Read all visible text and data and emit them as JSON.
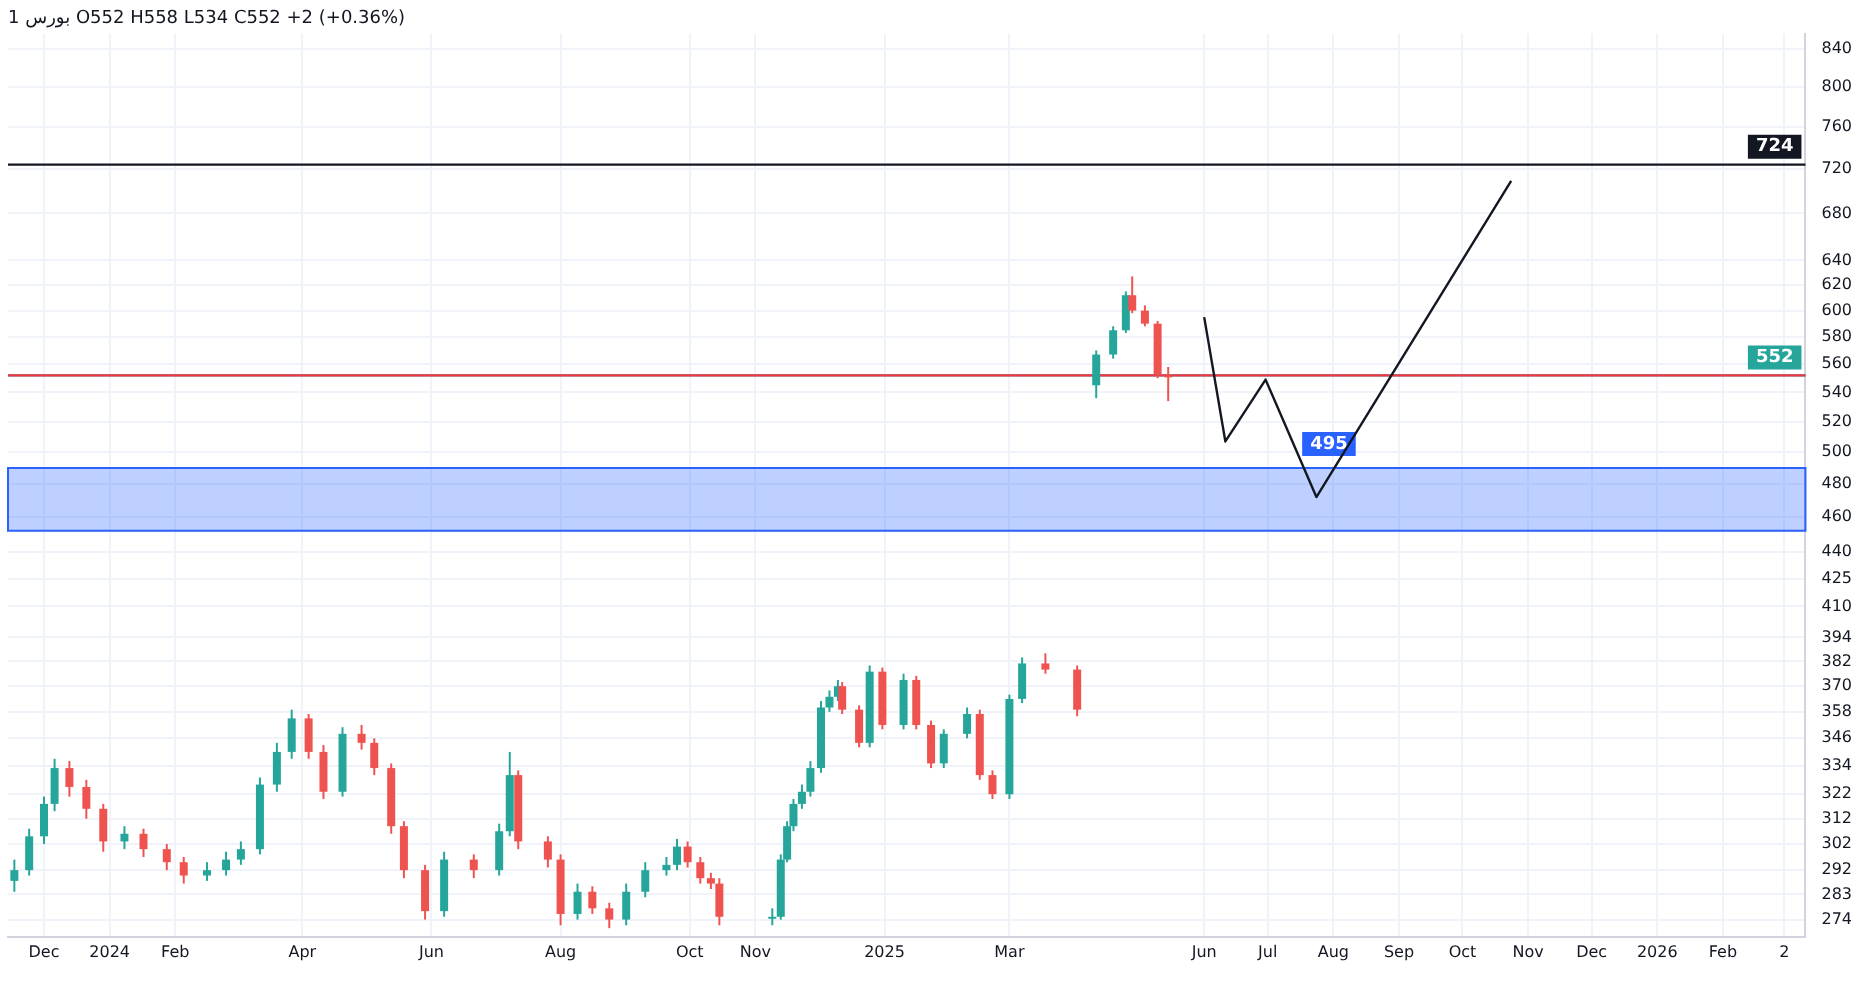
{
  "chart_data": {
    "type": "candlestick",
    "title": "1 بورس O552 H558 L534 C552 +2 (+0.36%)",
    "x": [
      "2023-11-17",
      "2023-11-24",
      "2023-12-01",
      "2023-12-06",
      "2023-12-13",
      "2023-12-21",
      "2023-12-29",
      "2024-01-08",
      "2024-01-17",
      "2024-01-28",
      "2024-02-05",
      "2024-02-16",
      "2024-02-25",
      "2024-03-03",
      "2024-03-12",
      "2024-03-20",
      "2024-03-27",
      "2024-04-04",
      "2024-04-11",
      "2024-04-20",
      "2024-04-29",
      "2024-05-05",
      "2024-05-13",
      "2024-05-19",
      "2024-05-29",
      "2024-06-07",
      "2024-06-21",
      "2024-07-03",
      "2024-07-08",
      "2024-07-12",
      "2024-07-26",
      "2024-08-01",
      "2024-08-09",
      "2024-08-16",
      "2024-08-24",
      "2024-09-01",
      "2024-09-10",
      "2024-09-20",
      "2024-09-25",
      "2024-09-30",
      "2024-10-06",
      "2024-10-11",
      "2024-10-15",
      "2024-11-09",
      "2024-11-13",
      "2024-11-16",
      "2024-11-19",
      "2024-11-23",
      "2024-11-27",
      "2024-12-02",
      "2024-12-06",
      "2024-12-10",
      "2024-12-12",
      "2024-12-20",
      "2024-12-25",
      "2024-12-31",
      "2025-01-10",
      "2025-01-16",
      "2025-01-23",
      "2025-01-29",
      "2025-02-09",
      "2025-02-15",
      "2025-02-21",
      "2025-03-01",
      "2025-03-07",
      "2025-03-18",
      "2025-04-02",
      "2025-04-11",
      "2025-04-19",
      "2025-04-25",
      "2025-04-28",
      "2025-05-04",
      "2025-05-10",
      "2025-05-15"
    ],
    "ohlc": [
      [
        288,
        296,
        284,
        292
      ],
      [
        292,
        308,
        290,
        305
      ],
      [
        305,
        321,
        302,
        318
      ],
      [
        318,
        337,
        315,
        333
      ],
      [
        333,
        336,
        321,
        325
      ],
      [
        325,
        328,
        312,
        316
      ],
      [
        316,
        318,
        299,
        303
      ],
      [
        303,
        309,
        300,
        306
      ],
      [
        306,
        308,
        297,
        300
      ],
      [
        300,
        302,
        292,
        295
      ],
      [
        295,
        297,
        287,
        290
      ],
      [
        290,
        295,
        288,
        292
      ],
      [
        292,
        299,
        290,
        296
      ],
      [
        296,
        303,
        294,
        300
      ],
      [
        300,
        329,
        298,
        326
      ],
      [
        326,
        344,
        323,
        340
      ],
      [
        340,
        359,
        337,
        355
      ],
      [
        355,
        357,
        337,
        340
      ],
      [
        340,
        343,
        320,
        323
      ],
      [
        323,
        351,
        321,
        348
      ],
      [
        348,
        352,
        341,
        344
      ],
      [
        344,
        346,
        330,
        333
      ],
      [
        333,
        335,
        306,
        309
      ],
      [
        309,
        311,
        289,
        292
      ],
      [
        292,
        294,
        274,
        277
      ],
      [
        277,
        299,
        275,
        296
      ],
      [
        296,
        298,
        289,
        292
      ],
      [
        292,
        310,
        290,
        307
      ],
      [
        307,
        340,
        305,
        330
      ],
      [
        330,
        332,
        300,
        303
      ],
      [
        303,
        305,
        293,
        296
      ],
      [
        296,
        298,
        272,
        276
      ],
      [
        276,
        287,
        274,
        284
      ],
      [
        284,
        286,
        276,
        278
      ],
      [
        278,
        280,
        271,
        274
      ],
      [
        274,
        287,
        272,
        284
      ],
      [
        284,
        295,
        282,
        292
      ],
      [
        292,
        297,
        290,
        294
      ],
      [
        294,
        304,
        292,
        301
      ],
      [
        301,
        303,
        293,
        295
      ],
      [
        295,
        297,
        287,
        289
      ],
      [
        289,
        291,
        285,
        287
      ],
      [
        287,
        289,
        272,
        275
      ],
      [
        275,
        278,
        272,
        275
      ],
      [
        275,
        298,
        274,
        296
      ],
      [
        296,
        311,
        295,
        309
      ],
      [
        309,
        320,
        307,
        318
      ],
      [
        318,
        326,
        316,
        323
      ],
      [
        323,
        336,
        321,
        333
      ],
      [
        333,
        363,
        331,
        360
      ],
      [
        360,
        368,
        358,
        365
      ],
      [
        365,
        373,
        363,
        370
      ],
      [
        370,
        372,
        357,
        359
      ],
      [
        359,
        361,
        342,
        344
      ],
      [
        344,
        380,
        342,
        377
      ],
      [
        377,
        379,
        350,
        352
      ],
      [
        352,
        376,
        350,
        373
      ],
      [
        373,
        375,
        350,
        352
      ],
      [
        352,
        354,
        333,
        335
      ],
      [
        335,
        350,
        333,
        348
      ],
      [
        348,
        360,
        346,
        357
      ],
      [
        357,
        359,
        328,
        330
      ],
      [
        330,
        332,
        320,
        322
      ],
      [
        322,
        366,
        320,
        364
      ],
      [
        364,
        384,
        362,
        381
      ],
      [
        381,
        386,
        376,
        378
      ],
      [
        378,
        380,
        356,
        359
      ],
      [
        545,
        570,
        536,
        567
      ],
      [
        567,
        588,
        564,
        585
      ],
      [
        585,
        615,
        583,
        612
      ],
      [
        612,
        627,
        598,
        600
      ],
      [
        600,
        604,
        588,
        590
      ],
      [
        590,
        592,
        550,
        553
      ],
      [
        552,
        558,
        534,
        552
      ]
    ],
    "colors": [
      "#26a69a",
      "#26a69a",
      "#26a69a",
      "#26a69a",
      "#ef5350",
      "#ef5350",
      "#ef5350",
      "#26a69a",
      "#ef5350",
      "#ef5350",
      "#ef5350",
      "#26a69a",
      "#26a69a",
      "#26a69a",
      "#26a69a",
      "#26a69a",
      "#26a69a",
      "#ef5350",
      "#ef5350",
      "#26a69a",
      "#ef5350",
      "#ef5350",
      "#ef5350",
      "#ef5350",
      "#ef5350",
      "#26a69a",
      "#ef5350",
      "#26a69a",
      "#26a69a",
      "#ef5350",
      "#ef5350",
      "#ef5350",
      "#26a69a",
      "#ef5350",
      "#ef5350",
      "#26a69a",
      "#26a69a",
      "#26a69a",
      "#26a69a",
      "#ef5350",
      "#ef5350",
      "#ef5350",
      "#ef5350",
      "#26a69a",
      "#26a69a",
      "#26a69a",
      "#26a69a",
      "#26a69a",
      "#26a69a",
      "#26a69a",
      "#26a69a",
      "#26a69a",
      "#ef5350",
      "#ef5350",
      "#26a69a",
      "#ef5350",
      "#26a69a",
      "#ef5350",
      "#ef5350",
      "#26a69a",
      "#26a69a",
      "#ef5350",
      "#ef5350",
      "#26a69a",
      "#26a69a",
      "#ef5350",
      "#ef5350",
      "#26a69a",
      "#26a69a",
      "#26a69a",
      "#ef5350",
      "#ef5350",
      "#ef5350",
      "#ef5350"
    ],
    "series": [
      {
        "type": "line",
        "color": "#131722",
        "x": [
          "2025-06-01",
          "2025-06-11",
          "2025-06-30",
          "2025-07-24",
          "2025-10-24"
        ],
        "values": [
          595,
          507,
          549,
          472,
          709
        ]
      }
    ],
    "ref_lines": [
      {
        "axis": "y",
        "value": 724,
        "label": "724",
        "color": "#131722"
      },
      {
        "axis": "y",
        "value": 552,
        "label": "552",
        "color": "#26a69a"
      },
      {
        "axis": "y",
        "value": 552,
        "label": null,
        "color": "#f23645"
      }
    ],
    "bands": [
      {
        "axis": "y",
        "from": 452,
        "to": 490,
        "label": "495",
        "color": "#2962ff"
      }
    ],
    "xlim": [
      "2023-11-14",
      "2026-03-12"
    ],
    "xticks": [
      {
        "value": "2023-12-01",
        "label": "Dec"
      },
      {
        "value": "2024-01-01",
        "label": "2024"
      },
      {
        "value": "2024-02-01",
        "label": "Feb"
      },
      {
        "value": "2024-04-01",
        "label": "Apr"
      },
      {
        "value": "2024-06-01",
        "label": "Jun"
      },
      {
        "value": "2024-08-01",
        "label": "Aug"
      },
      {
        "value": "2024-10-01",
        "label": "Oct"
      },
      {
        "value": "2024-11-01",
        "label": "Nov"
      },
      {
        "value": "2025-01-01",
        "label": "2025"
      },
      {
        "value": "2025-03-01",
        "label": "Mar"
      },
      {
        "value": "2025-06-01",
        "label": "Jun"
      },
      {
        "value": "2025-07-01",
        "label": "Jul"
      },
      {
        "value": "2025-08-01",
        "label": "Aug"
      },
      {
        "value": "2025-09-01",
        "label": "Sep"
      },
      {
        "value": "2025-10-01",
        "label": "Oct"
      },
      {
        "value": "2025-11-01",
        "label": "Nov"
      },
      {
        "value": "2025-12-01",
        "label": "Dec"
      },
      {
        "value": "2026-01-01",
        "label": "2026"
      },
      {
        "value": "2026-02-01",
        "label": "Feb"
      },
      {
        "value": "2026-03-02",
        "label": "2"
      }
    ],
    "ylim": [
      268,
      857
    ],
    "yticks": [
      274,
      283,
      292,
      302,
      312,
      322,
      334,
      346,
      358,
      370,
      382,
      394,
      410,
      425,
      440,
      460,
      480,
      500,
      520,
      540,
      560,
      580,
      600,
      620,
      640,
      680,
      720,
      760,
      800,
      840
    ],
    "log": true,
    "grid": true,
    "legend": false,
    "marker": "none",
    "line_style": "solid"
  }
}
